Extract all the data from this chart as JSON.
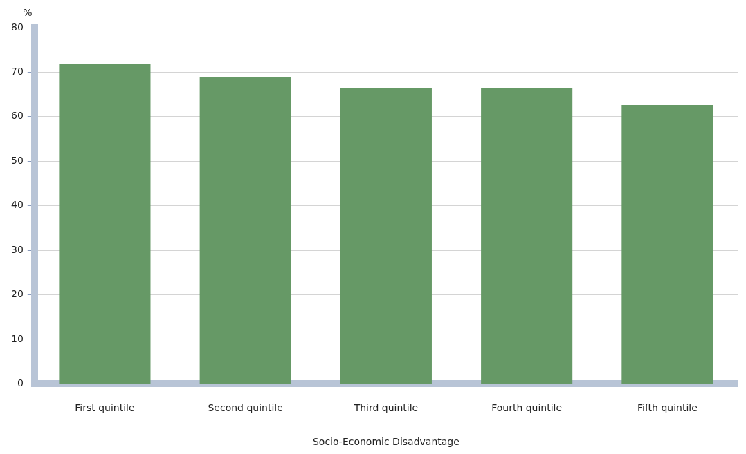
{
  "chart_data": {
    "type": "bar",
    "ylabel": "%",
    "xlabel": "Socio-Economic Disadvantage",
    "categories": [
      "First quintile",
      "Second quintile",
      "Third quintile",
      "Fourth quintile",
      "Fifth quintile"
    ],
    "values": [
      71.9,
      68.9,
      66.4,
      66.4,
      62.6
    ],
    "color": "#669966",
    "ylim": [
      0,
      80
    ],
    "yticks": [
      0,
      10,
      20,
      30,
      40,
      50,
      60,
      70,
      80
    ],
    "grid": "y",
    "legend": false
  }
}
